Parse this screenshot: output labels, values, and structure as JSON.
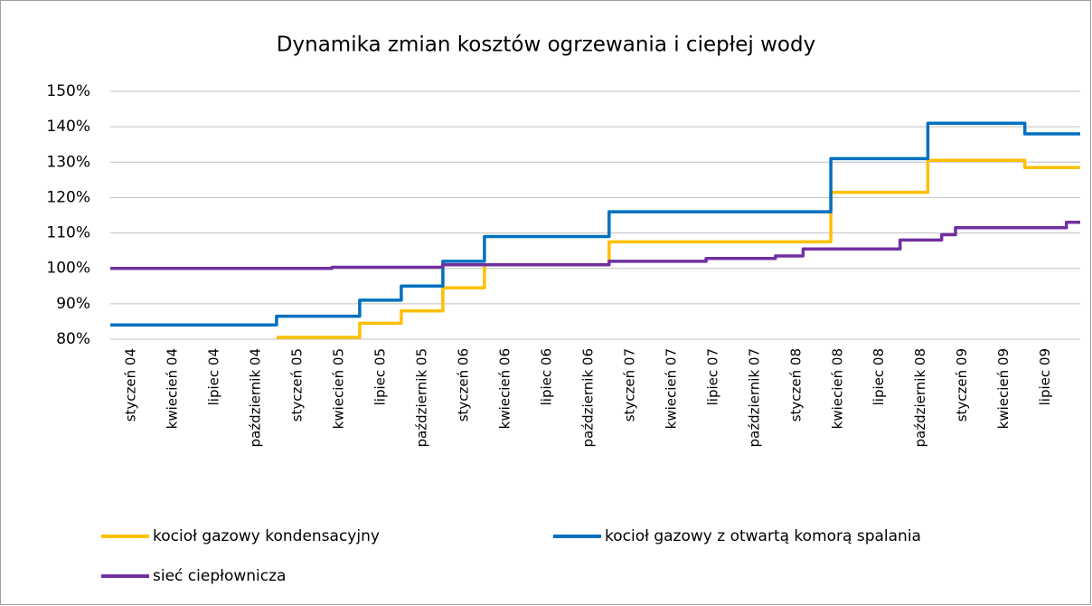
{
  "chart_data": {
    "type": "line",
    "title": "Dynamika zmian kosztów ogrzewania i ciepłej wody",
    "categories": [
      null,
      "styczeń 04",
      null,
      null,
      "kwiecień 04",
      null,
      null,
      "lipiec 04",
      null,
      null,
      "październik 04",
      null,
      null,
      "styczeń 05",
      null,
      null,
      "kwiecień 05",
      null,
      null,
      "lipiec 05",
      null,
      null,
      "październik 05",
      null,
      null,
      "styczeń 06",
      null,
      null,
      "kwiecień 06",
      null,
      null,
      "lipiec 06",
      null,
      null,
      "październik 06",
      null,
      null,
      "styczeń 07",
      null,
      null,
      "kwiecień 07",
      null,
      null,
      "lipiec 07",
      null,
      null,
      "październik 07",
      null,
      null,
      "styczeń 08",
      null,
      null,
      "kwiecień 08",
      null,
      null,
      "lipiec 08",
      null,
      null,
      "październik 08",
      null,
      null,
      "styczeń 09",
      null,
      null,
      "kwiecień 09",
      null,
      null,
      "lipiec 09",
      null,
      null
    ],
    "series": [
      {
        "name": "kocioł gazowy kondensacyjny",
        "color": "#ffc000",
        "values": [
          null,
          null,
          null,
          null,
          null,
          null,
          null,
          null,
          null,
          null,
          null,
          null,
          80.5,
          80.5,
          80.5,
          80.5,
          80.5,
          80.5,
          84.5,
          84.5,
          84.5,
          88,
          88,
          88,
          94.5,
          94.5,
          94.5,
          101,
          101,
          101,
          101,
          101,
          101,
          101,
          101,
          101,
          107.5,
          107.5,
          107.5,
          107.5,
          107.5,
          107.5,
          107.5,
          107.5,
          107.5,
          107.5,
          107.5,
          107.5,
          107.5,
          107.5,
          107.5,
          107.5,
          121.5,
          121.5,
          121.5,
          121.5,
          121.5,
          121.5,
          121.5,
          130.5,
          130.5,
          130.5,
          130.5,
          130.5,
          130.5,
          130.5,
          128.5,
          128.5,
          128.5,
          128.5
        ]
      },
      {
        "name": "kocioł gazowy z otwartą komorą spalania",
        "color": "#0070c0",
        "values": [
          84,
          84,
          84,
          84,
          84,
          84,
          84,
          84,
          84,
          84,
          84,
          84,
          86.5,
          86.5,
          86.5,
          86.5,
          86.5,
          86.5,
          91,
          91,
          91,
          95,
          95,
          95,
          102,
          102,
          102,
          109,
          109,
          109,
          109,
          109,
          109,
          109,
          109,
          109,
          116,
          116,
          116,
          116,
          116,
          116,
          116,
          116,
          116,
          116,
          116,
          116,
          116,
          116,
          116,
          116,
          131,
          131,
          131,
          131,
          131,
          131,
          131,
          141,
          141,
          141,
          141,
          141,
          141,
          141,
          138,
          138,
          138,
          138
        ]
      },
      {
        "name": "sieć ciepłownicza",
        "color": "#7030a0",
        "values": [
          100,
          100,
          100,
          100,
          100,
          100,
          100,
          100,
          100,
          100,
          100,
          100,
          100,
          100,
          100,
          100,
          100.3,
          100.3,
          100.3,
          100.3,
          100.3,
          100.3,
          100.3,
          100.3,
          101,
          101,
          101,
          101,
          101,
          101,
          101,
          101,
          101,
          101,
          101,
          101,
          102,
          102,
          102,
          102,
          102,
          102,
          102,
          102.8,
          102.8,
          102.8,
          102.8,
          102.8,
          103.5,
          103.5,
          105.5,
          105.5,
          105.5,
          105.5,
          105.5,
          105.5,
          105.5,
          108,
          108,
          108,
          109.5,
          111.5,
          111.5,
          111.5,
          111.5,
          111.5,
          111.5,
          111.5,
          111.5,
          113
        ]
      }
    ],
    "ylim": [
      80,
      150
    ],
    "yticks": [
      {
        "value": 80,
        "label": "80%"
      },
      {
        "value": 90,
        "label": "90%"
      },
      {
        "value": 100,
        "label": "100%"
      },
      {
        "value": 110,
        "label": "110%"
      },
      {
        "value": 120,
        "label": "120%"
      },
      {
        "value": 130,
        "label": "130%"
      },
      {
        "value": 140,
        "label": "140%"
      },
      {
        "value": 150,
        "label": "150%"
      }
    ],
    "grid": true,
    "legend": "bottom"
  }
}
